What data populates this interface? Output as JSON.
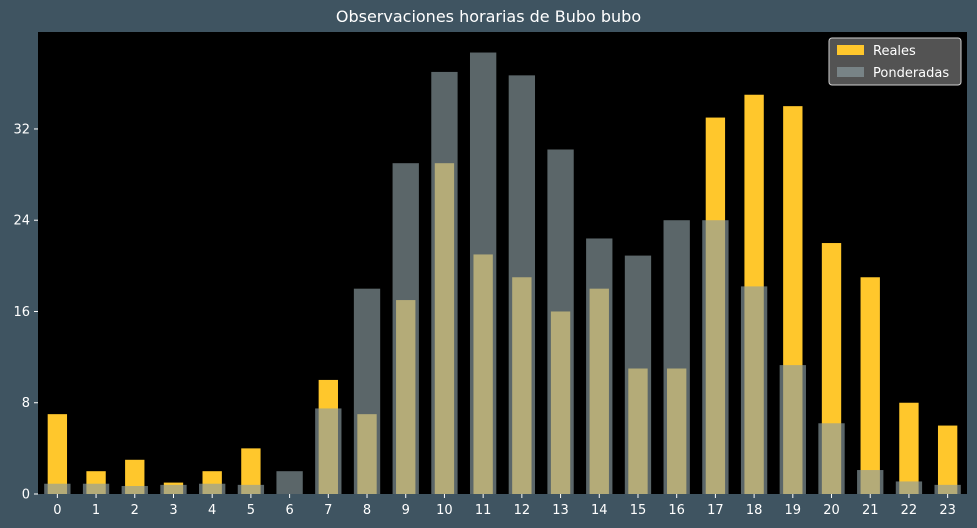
{
  "chart_data": {
    "type": "bar",
    "title": "Observaciones horarias de Bubo bubo",
    "xlabel": "",
    "ylabel": "",
    "categories": [
      "0",
      "1",
      "2",
      "3",
      "4",
      "5",
      "6",
      "7",
      "8",
      "9",
      "10",
      "11",
      "12",
      "13",
      "14",
      "15",
      "16",
      "17",
      "18",
      "19",
      "20",
      "21",
      "22",
      "23"
    ],
    "ylim": [
      0,
      40.5
    ],
    "yticks": [
      0,
      8,
      16,
      24,
      32
    ],
    "grid": false,
    "legend": "top-right",
    "series": [
      {
        "name": "Reales",
        "color": "#ffc72c",
        "values": [
          7,
          2,
          3,
          1,
          2,
          4,
          0,
          10,
          7,
          17,
          29,
          21,
          19,
          16,
          18,
          11,
          11,
          33,
          35,
          34,
          22,
          19,
          8,
          6
        ]
      },
      {
        "name": "Ponderadas",
        "color": "#8c9ca2",
        "values": [
          0.9,
          0.9,
          0.7,
          0.8,
          0.9,
          0.8,
          2,
          7.5,
          18,
          29,
          37,
          38.7,
          36.7,
          30.2,
          22.4,
          20.9,
          24,
          24,
          18.2,
          11.3,
          6.2,
          2.1,
          1.1,
          0.8
        ]
      }
    ]
  }
}
